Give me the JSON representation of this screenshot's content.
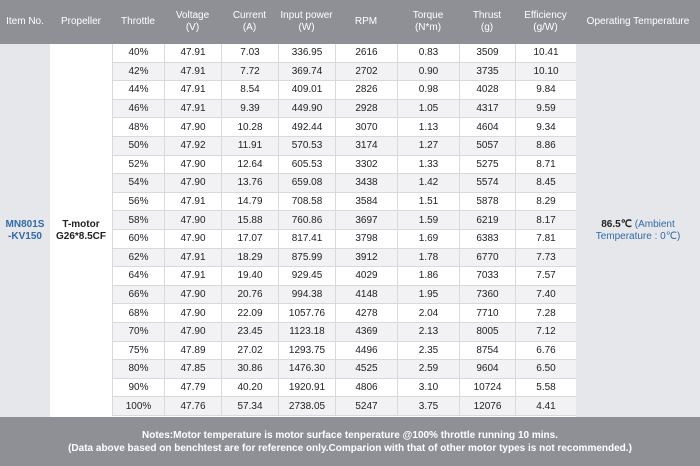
{
  "headers": {
    "item_no": "Item No.",
    "propeller": "Propeller",
    "throttle": "Throttle",
    "voltage": "Voltage\n(V)",
    "current": "Current\n(A)",
    "input_power": "Input power\n(W)",
    "rpm": "RPM",
    "torque": "Torque\n(N*m)",
    "thrust": "Thrust\n(g)",
    "efficiency": "Efficiency\n(g/W)",
    "operating_temperature": "Operating Temperature"
  },
  "item_no": "MN801S\n-KV150",
  "propeller": "T-motor\nG26*8.5CF",
  "temperature": {
    "value": "86.5℃",
    "ambient": "(Ambient Temperature : 0℃)"
  },
  "rows": [
    [
      "40%",
      "47.91",
      "7.03",
      "336.95",
      "2616",
      "0.83",
      "3509",
      "10.41"
    ],
    [
      "42%",
      "47.91",
      "7.72",
      "369.74",
      "2702",
      "0.90",
      "3735",
      "10.10"
    ],
    [
      "44%",
      "47.91",
      "8.54",
      "409.01",
      "2826",
      "0.98",
      "4028",
      "9.84"
    ],
    [
      "46%",
      "47.91",
      "9.39",
      "449.90",
      "2928",
      "1.05",
      "4317",
      "9.59"
    ],
    [
      "48%",
      "47.90",
      "10.28",
      "492.44",
      "3070",
      "1.13",
      "4604",
      "9.34"
    ],
    [
      "50%",
      "47.92",
      "11.91",
      "570.53",
      "3174",
      "1.27",
      "5057",
      "8.86"
    ],
    [
      "52%",
      "47.90",
      "12.64",
      "605.53",
      "3302",
      "1.33",
      "5275",
      "8.71"
    ],
    [
      "54%",
      "47.90",
      "13.76",
      "659.08",
      "3438",
      "1.42",
      "5574",
      "8.45"
    ],
    [
      "56%",
      "47.91",
      "14.79",
      "708.58",
      "3584",
      "1.51",
      "5878",
      "8.29"
    ],
    [
      "58%",
      "47.90",
      "15.88",
      "760.86",
      "3697",
      "1.59",
      "6219",
      "8.17"
    ],
    [
      "60%",
      "47.90",
      "17.07",
      "817.41",
      "3798",
      "1.69",
      "6383",
      "7.81"
    ],
    [
      "62%",
      "47.91",
      "18.29",
      "875.99",
      "3912",
      "1.78",
      "6770",
      "7.73"
    ],
    [
      "64%",
      "47.91",
      "19.40",
      "929.45",
      "4029",
      "1.86",
      "7033",
      "7.57"
    ],
    [
      "66%",
      "47.90",
      "20.76",
      "994.38",
      "4148",
      "1.95",
      "7360",
      "7.40"
    ],
    [
      "68%",
      "47.90",
      "22.09",
      "1057.76",
      "4278",
      "2.04",
      "7710",
      "7.28"
    ],
    [
      "70%",
      "47.90",
      "23.45",
      "1123.18",
      "4369",
      "2.13",
      "8005",
      "7.12"
    ],
    [
      "75%",
      "47.89",
      "27.02",
      "1293.75",
      "4496",
      "2.35",
      "8754",
      "6.76"
    ],
    [
      "80%",
      "47.85",
      "30.86",
      "1476.30",
      "4525",
      "2.59",
      "9604",
      "6.50"
    ],
    [
      "90%",
      "47.79",
      "40.20",
      "1920.91",
      "4806",
      "3.10",
      "10724",
      "5.58"
    ],
    [
      "100%",
      "47.76",
      "57.34",
      "2738.05",
      "5247",
      "3.75",
      "12076",
      "4.41"
    ]
  ],
  "notes": {
    "line1": "Notes:Motor temperature is motor surface tenperature @100% throttle running 10 mins.",
    "line2": "(Data above based on benchtest are for reference only.Comparion with that of other motor types is not recommended.)"
  }
}
